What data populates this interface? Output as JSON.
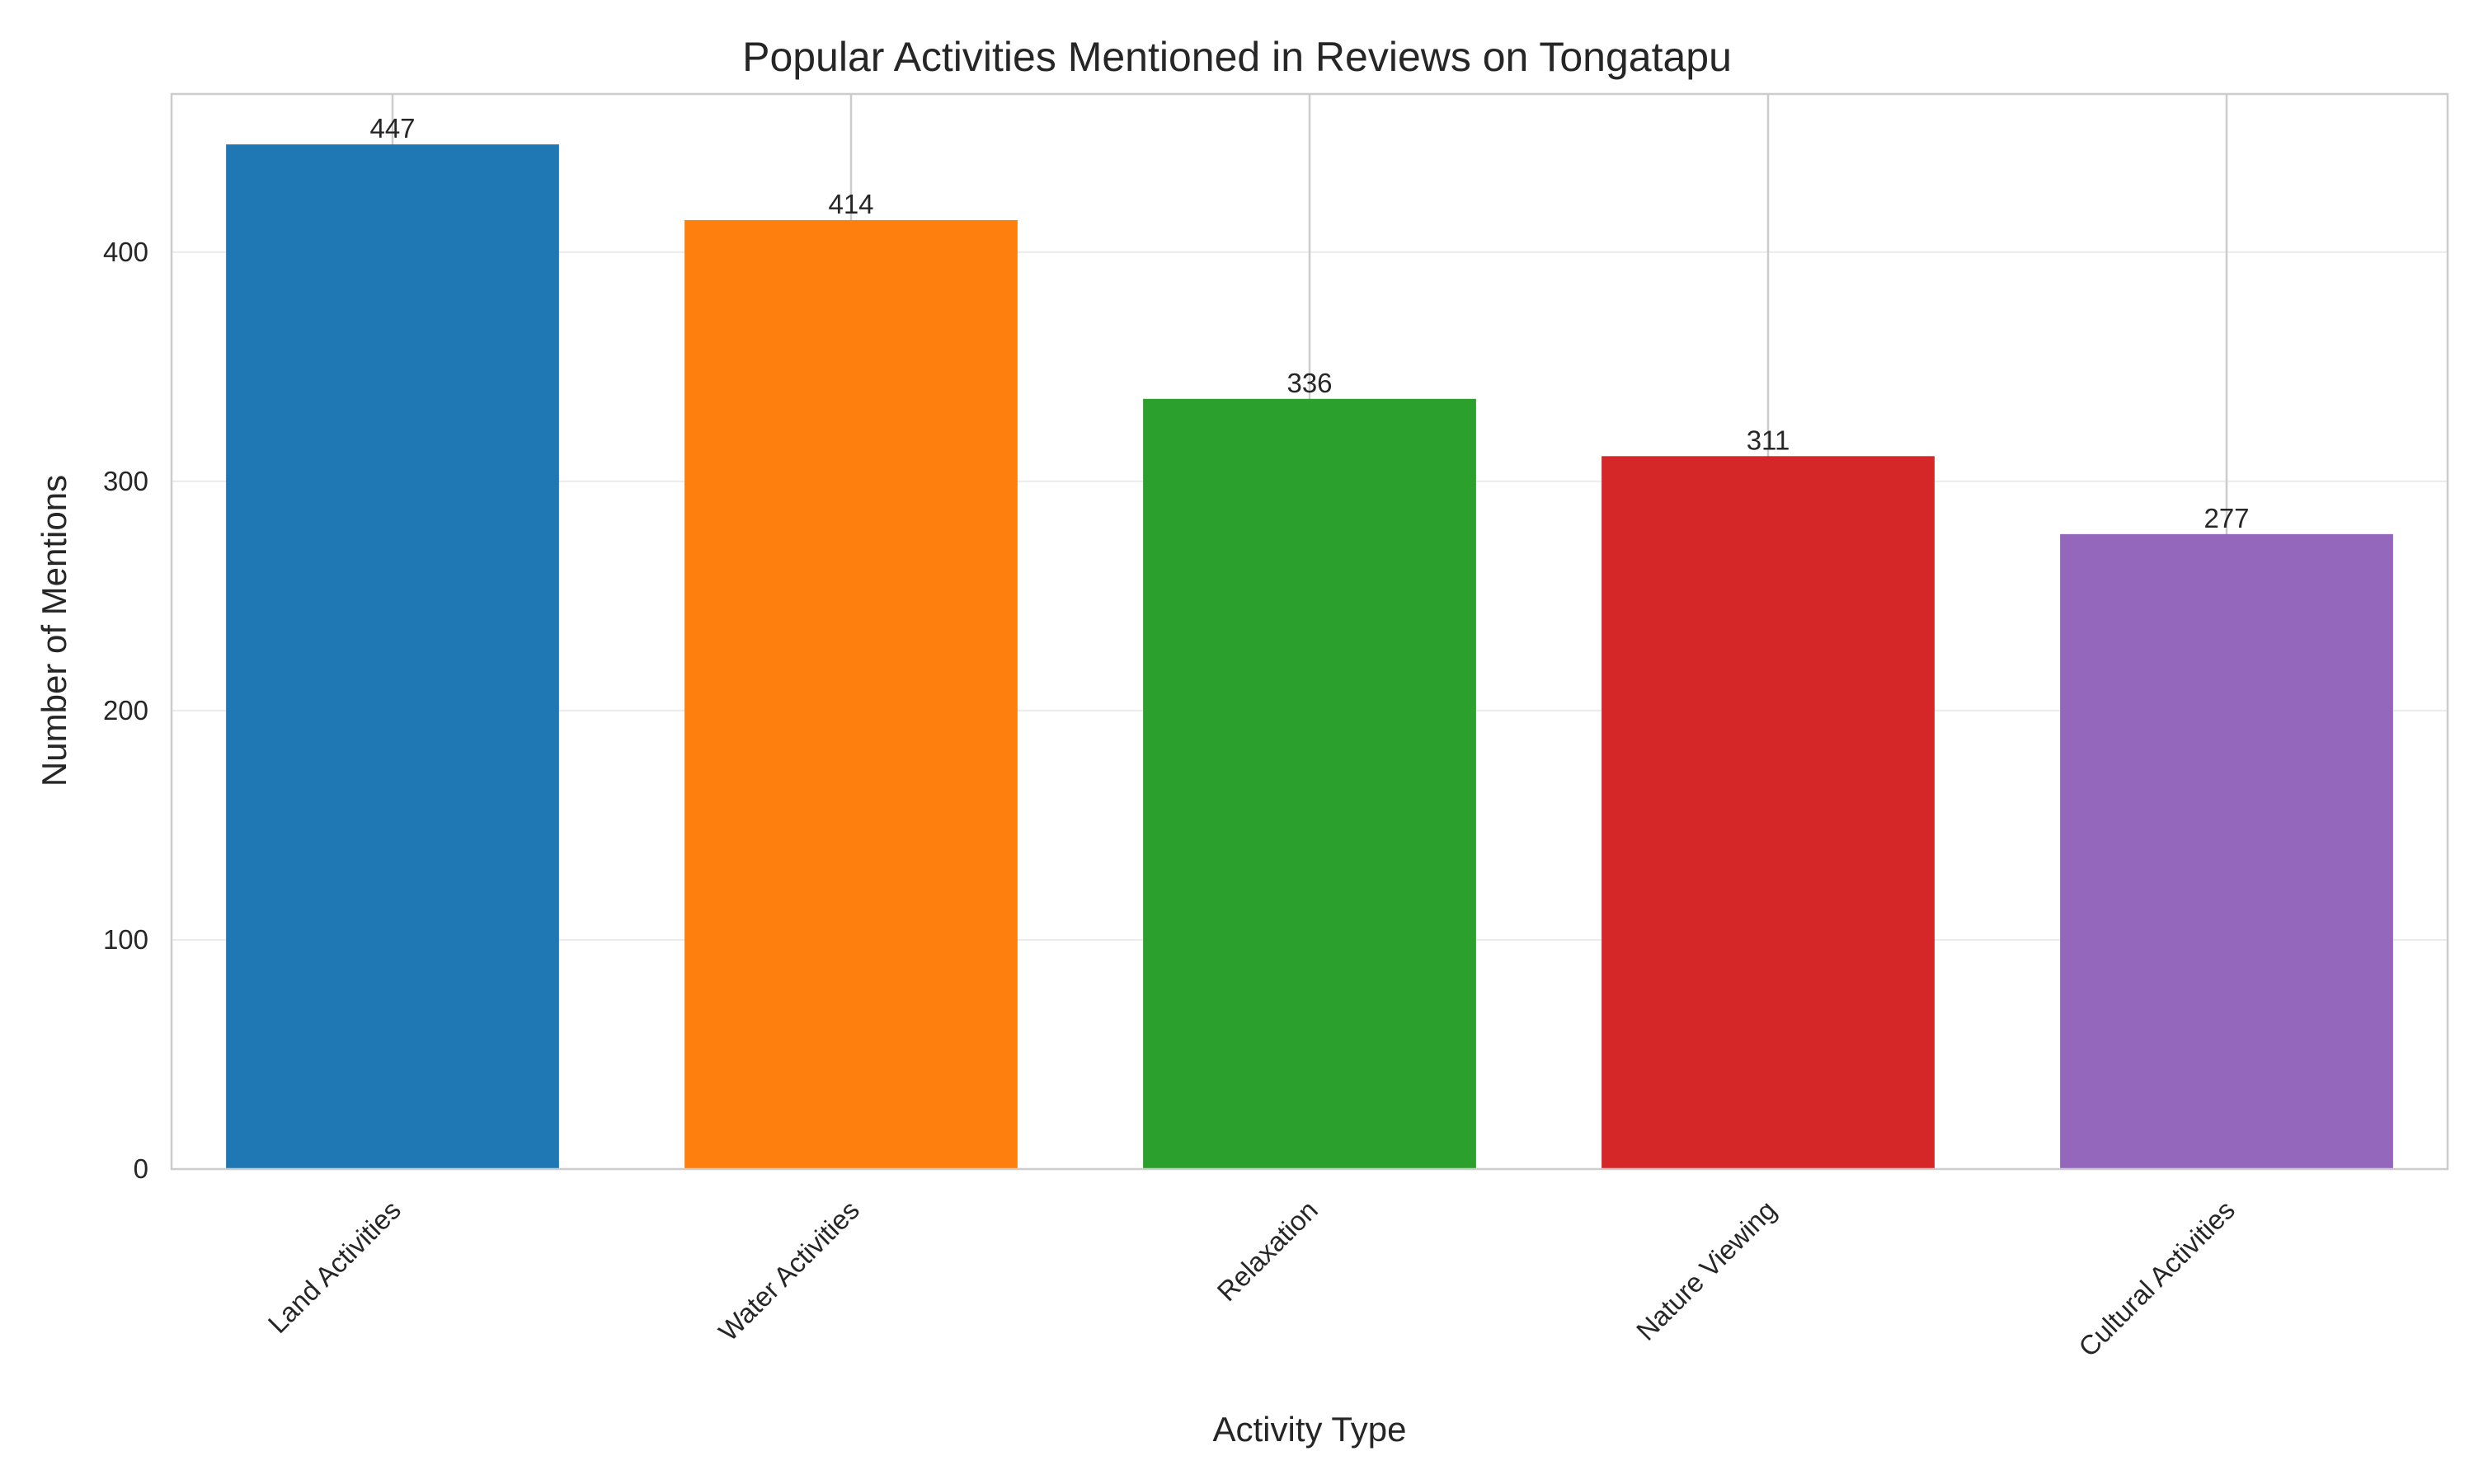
{
  "chart_data": {
    "type": "bar",
    "title": "Popular Activities Mentioned in Reviews on Tongatapu",
    "xlabel": "Activity Type",
    "ylabel": "Number of Mentions",
    "categories": [
      "Land Activities",
      "Water Activities",
      "Relaxation",
      "Nature Viewing",
      "Cultural Activities"
    ],
    "values": [
      447,
      414,
      336,
      311,
      277
    ],
    "value_labels": [
      "447",
      "414",
      "336",
      "311",
      "277"
    ],
    "colors": [
      "#1f77b4",
      "#ff7f0e",
      "#2ca02c",
      "#d62728",
      "#9467bd"
    ],
    "ylim": [
      0,
      469
    ],
    "yticks": [
      0,
      100,
      200,
      300,
      400
    ],
    "ytick_labels": [
      "0",
      "100",
      "200",
      "300",
      "400"
    ],
    "grid": true,
    "legend": "none"
  }
}
